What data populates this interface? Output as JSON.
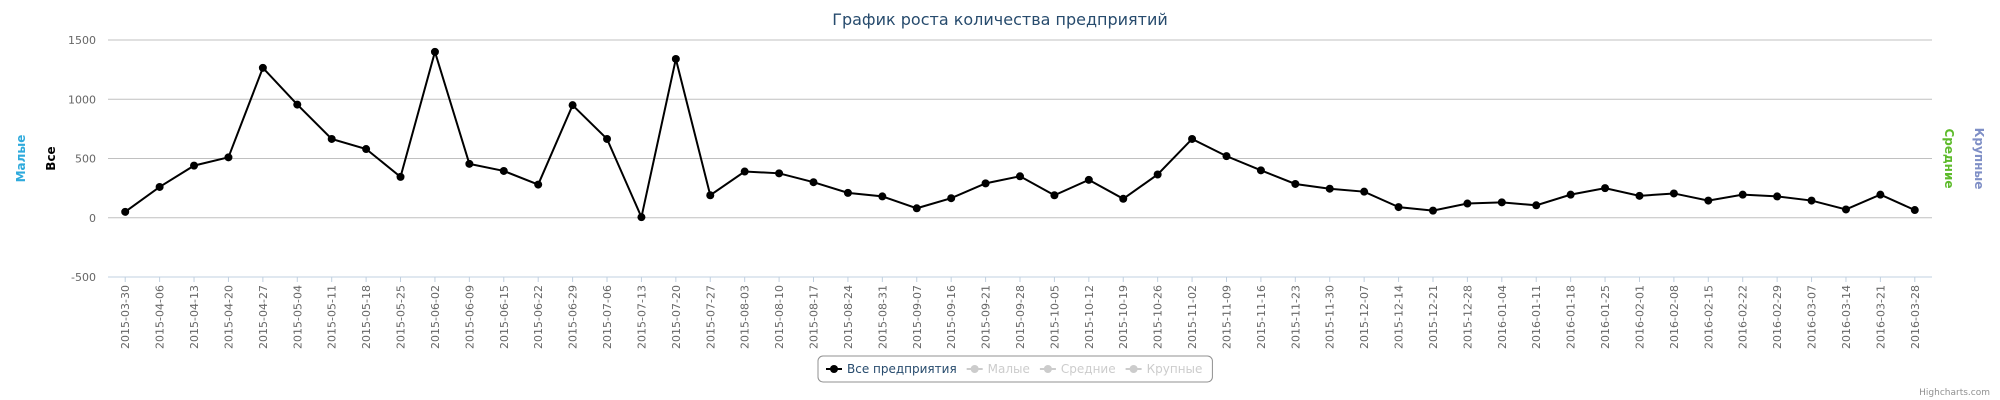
{
  "chart_data": {
    "type": "line",
    "title": "График роста количества предприятий",
    "categories": [
      "2015-03-30",
      "2015-04-06",
      "2015-04-13",
      "2015-04-20",
      "2015-04-27",
      "2015-05-04",
      "2015-05-11",
      "2015-05-18",
      "2015-05-25",
      "2015-06-02",
      "2015-06-09",
      "2015-06-15",
      "2015-06-22",
      "2015-06-29",
      "2015-07-06",
      "2015-07-13",
      "2015-07-20",
      "2015-07-27",
      "2015-08-03",
      "2015-08-10",
      "2015-08-17",
      "2015-08-24",
      "2015-08-31",
      "2015-09-07",
      "2015-09-16",
      "2015-09-21",
      "2015-09-28",
      "2015-10-05",
      "2015-10-12",
      "2015-10-19",
      "2015-10-26",
      "2015-11-02",
      "2015-11-09",
      "2015-11-16",
      "2015-11-23",
      "2015-11-30",
      "2015-12-07",
      "2015-12-14",
      "2015-12-21",
      "2015-12-28",
      "2016-01-04",
      "2016-01-11",
      "2016-01-18",
      "2016-01-25",
      "2016-02-01",
      "2016-02-08",
      "2016-02-15",
      "2016-02-22",
      "2016-02-29",
      "2016-03-07",
      "2016-03-14",
      "2016-03-21",
      "2016-03-28"
    ],
    "series": [
      {
        "name": "Все предприятия",
        "color": "#000000",
        "values": [
          50,
          260,
          440,
          510,
          1265,
          955,
          665,
          580,
          345,
          1400,
          455,
          395,
          280,
          950,
          665,
          5,
          1340,
          190,
          390,
          375,
          300,
          210,
          180,
          80,
          165,
          290,
          350,
          190,
          320,
          160,
          365,
          665,
          520,
          400,
          285,
          245,
          220,
          90,
          60,
          120,
          130,
          105,
          195,
          250,
          185,
          205,
          145,
          195,
          180,
          145,
          70,
          195,
          65
        ]
      }
    ],
    "hidden_series": [
      {
        "name": "Малые",
        "color": "#cccccc"
      },
      {
        "name": "Средние",
        "color": "#cccccc"
      },
      {
        "name": "Крупные",
        "color": "#cccccc"
      }
    ],
    "axis_titles": [
      {
        "text": "Малые",
        "side": "left",
        "color": "#2eaadc"
      },
      {
        "text": "Все",
        "side": "left",
        "color": "#000000"
      },
      {
        "text": "Средние",
        "side": "right",
        "color": "#5dbb2b"
      },
      {
        "text": "Крупные",
        "side": "right",
        "color": "#7f8fc6"
      }
    ],
    "ylim": [
      -500,
      1500
    ],
    "yticks": [
      -500,
      0,
      500,
      1000,
      1500
    ],
    "grid": true,
    "credits": "Highcharts.com"
  }
}
